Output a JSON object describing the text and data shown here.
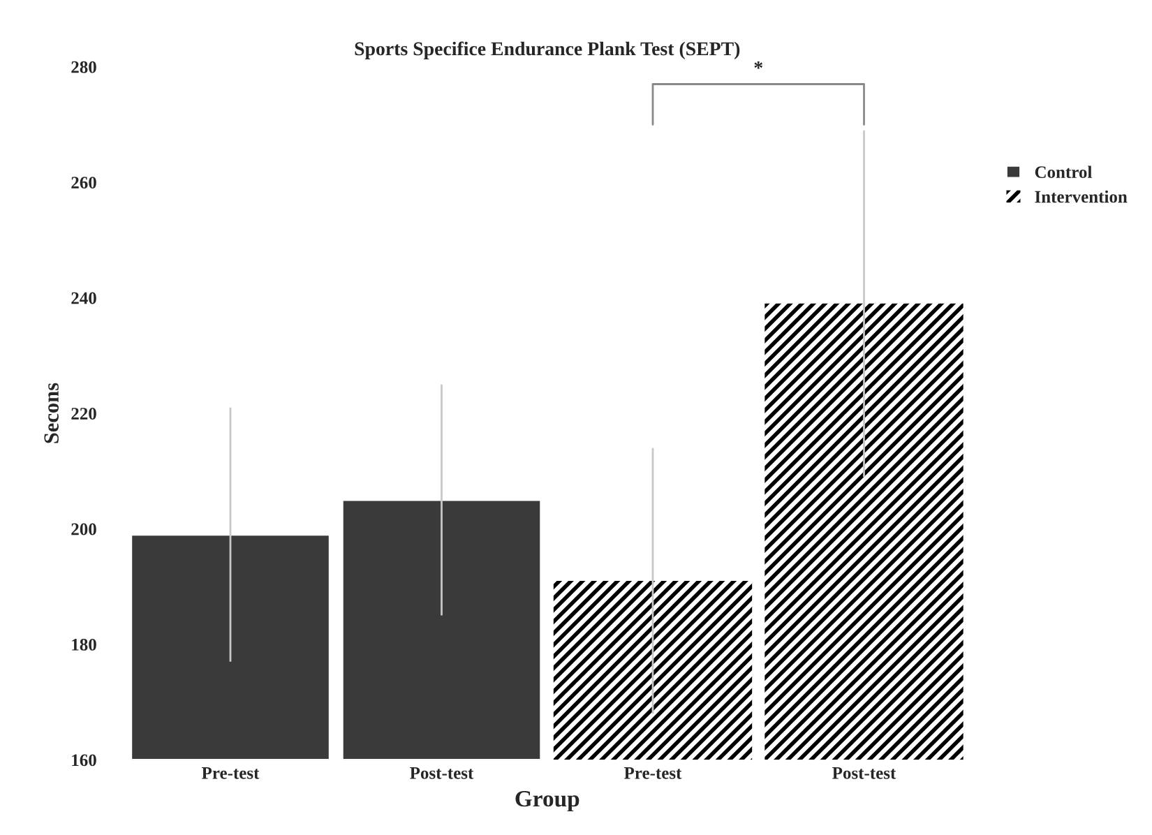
{
  "chart_data": {
    "type": "bar",
    "title": "Sports Specifice Endurance Plank Test (SEPT)",
    "xlabel": "Group",
    "ylabel": "Secons",
    "categories": [
      "Pre-test",
      "Post-test",
      "Pre-test",
      "Post-test"
    ],
    "series": [
      {
        "name": "Control",
        "color": "#3a3a3a",
        "values": [
          199,
          205,
          null,
          null
        ],
        "errors": [
          22,
          20,
          null,
          null
        ]
      },
      {
        "name": "Intervention",
        "color": "#000000",
        "values": [
          null,
          null,
          191,
          239
        ],
        "errors": [
          null,
          null,
          23,
          30
        ]
      }
    ],
    "ylim": [
      160,
      280
    ],
    "yticks": [
      160,
      180,
      200,
      220,
      240,
      260,
      280
    ],
    "grid": false,
    "legend": "top right",
    "annotations": [
      "*"
    ]
  }
}
